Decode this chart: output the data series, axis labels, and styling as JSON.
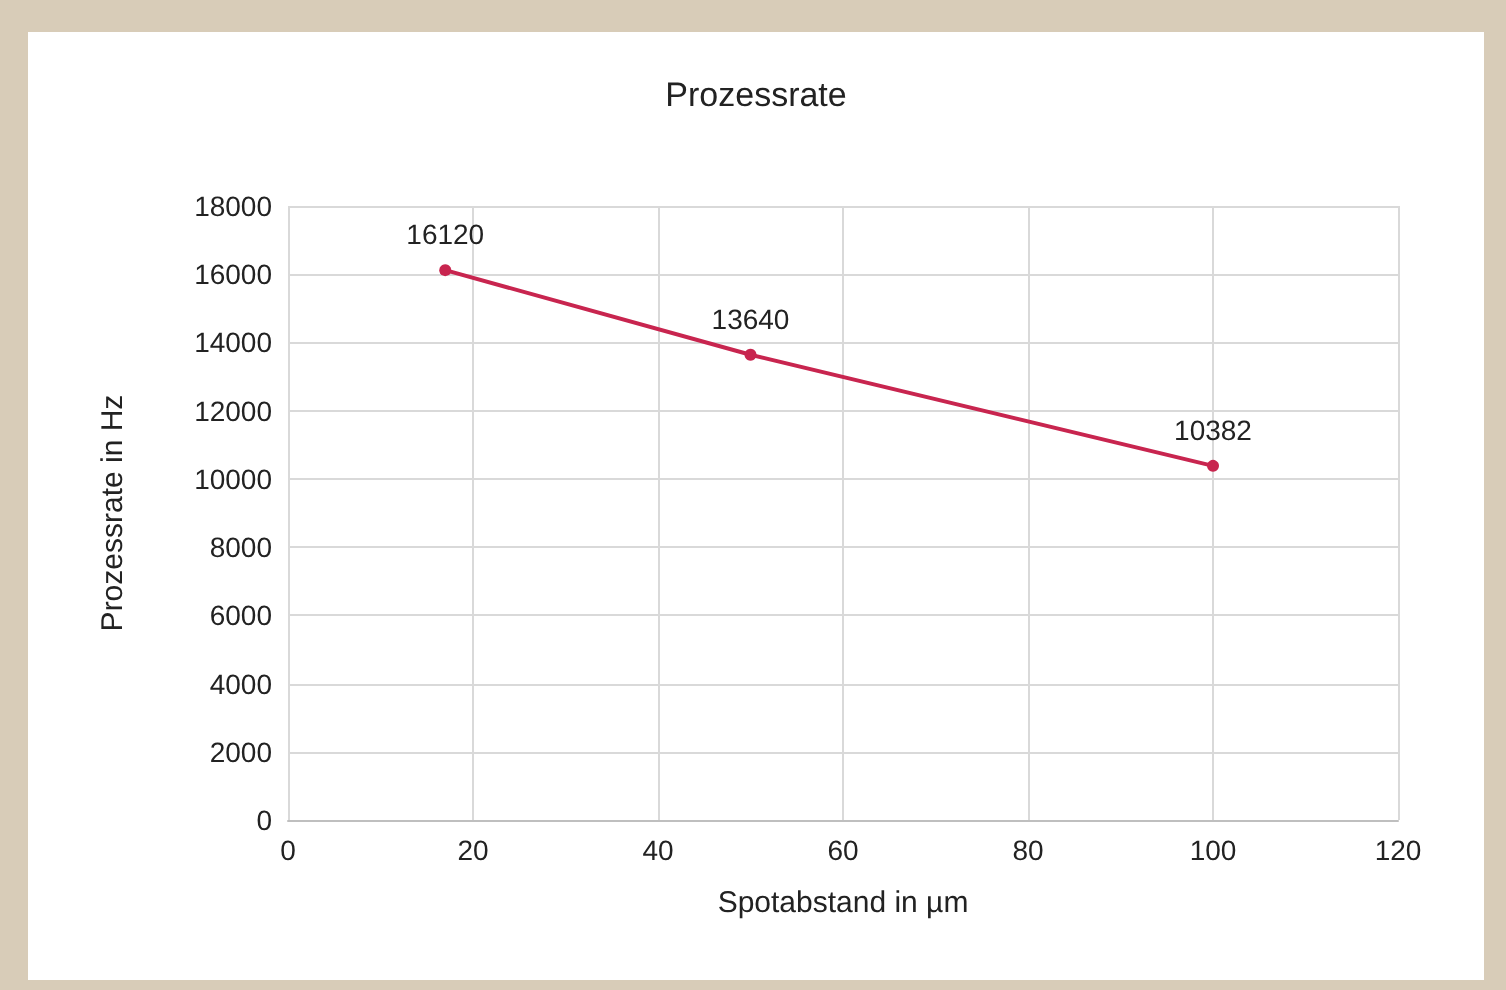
{
  "chart_data": {
    "type": "line",
    "title": "Prozessrate",
    "xlabel": "Spotabstand in µm",
    "ylabel": "Prozessrate in Hz",
    "x": [
      17,
      50,
      100
    ],
    "series": [
      {
        "color": "#c8254f",
        "values": [
          16120,
          13640,
          10382
        ]
      }
    ],
    "xlim": [
      0,
      120
    ],
    "xticks": [
      0,
      20,
      40,
      60,
      80,
      100,
      120
    ],
    "ylim": [
      0,
      18000
    ],
    "yticks": [
      0,
      2000,
      4000,
      6000,
      8000,
      10000,
      12000,
      14000,
      16000,
      18000
    ],
    "grid": true,
    "marker": "circle",
    "line_style": "solid",
    "data_labels": true
  }
}
